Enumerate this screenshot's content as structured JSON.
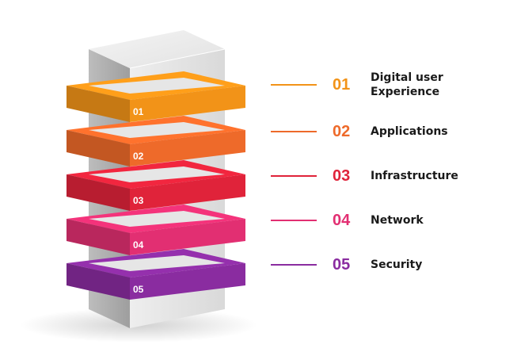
{
  "layers": [
    {
      "num": "01",
      "label": "Digital user\nExperience",
      "color": "#f29318"
    },
    {
      "num": "02",
      "label": "Applications",
      "color": "#ee6a2a"
    },
    {
      "num": "03",
      "label": "Infrastructure",
      "color": "#e0233a"
    },
    {
      "num": "04",
      "label": "Network",
      "color": "#e22f72"
    },
    {
      "num": "05",
      "label": "Security",
      "color": "#8a2ca0"
    }
  ]
}
